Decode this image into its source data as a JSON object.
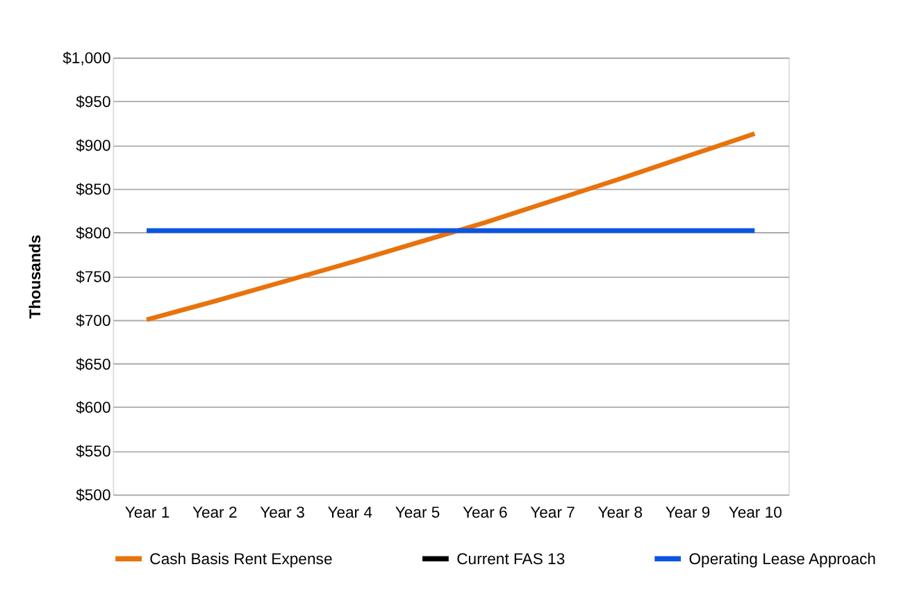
{
  "chart_data": {
    "type": "line",
    "ylabel": "Thousands",
    "categories": [
      "Year 1",
      "Year 2",
      "Year 3",
      "Year 4",
      "Year 5",
      "Year 6",
      "Year 7",
      "Year 8",
      "Year 9",
      "Year 10"
    ],
    "series": [
      {
        "name": "Cash Basis Rent Expense",
        "color": "#e8730c",
        "values": [
          700,
          721,
          743,
          765,
          788,
          811,
          836,
          861,
          887,
          913
        ]
      },
      {
        "name": "Current FAS 13",
        "color": "#000000",
        "values": [
          null,
          null,
          null,
          null,
          null,
          null,
          null,
          null,
          null,
          null
        ]
      },
      {
        "name": "Operating Lease Approach",
        "color": "#0a55e0",
        "values": [
          802,
          802,
          802,
          802,
          802,
          802,
          802,
          802,
          802,
          802
        ]
      }
    ],
    "ylim": [
      500,
      1000
    ],
    "yticks": [
      {
        "value": 500,
        "label": "$500"
      },
      {
        "value": 550,
        "label": "$550"
      },
      {
        "value": 600,
        "label": "$600"
      },
      {
        "value": 650,
        "label": "$650"
      },
      {
        "value": 700,
        "label": "$700"
      },
      {
        "value": 750,
        "label": "$750"
      },
      {
        "value": 800,
        "label": "$800"
      },
      {
        "value": 850,
        "label": "$850"
      },
      {
        "value": 900,
        "label": "$900"
      },
      {
        "value": 950,
        "label": "$950"
      },
      {
        "value": 1000,
        "label": "$1,000"
      }
    ],
    "grid": "y",
    "legend": "bottom",
    "marker": "none",
    "line_style": "solid"
  }
}
